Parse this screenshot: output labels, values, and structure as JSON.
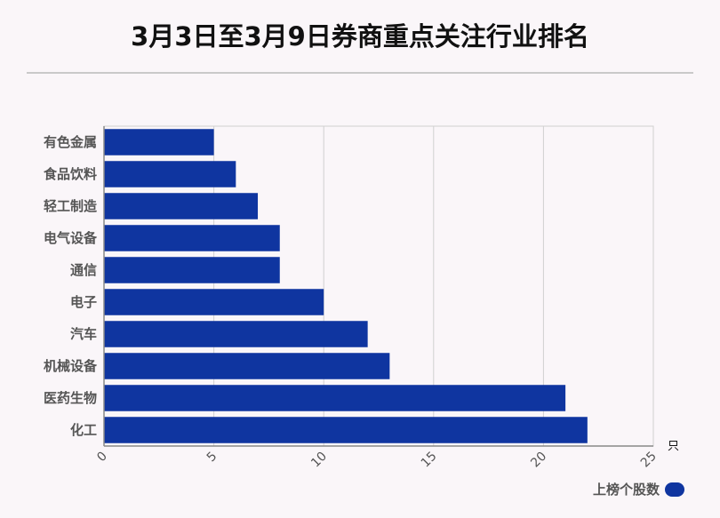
{
  "title": "3月3日至3月9日券商重点关注行业排名",
  "colors": {
    "bar": "#0f35a0",
    "grid": "#d0d0d0",
    "axis": "#888888"
  },
  "chart_data": {
    "type": "bar",
    "orientation": "horizontal",
    "title": "3月3日至3月9日券商重点关注行业排名",
    "categories": [
      "有色金属",
      "食品饮料",
      "轻工制造",
      "电气设备",
      "通信",
      "电子",
      "汽车",
      "机械设备",
      "医药生物",
      "化工"
    ],
    "series": [
      {
        "name": "上榜个股数",
        "values": [
          5,
          6,
          7,
          8,
          8,
          10,
          12,
          13,
          21,
          22
        ]
      }
    ],
    "xticks": [
      "0",
      "5",
      "10",
      "15",
      "20",
      "25"
    ],
    "xlim": [
      0,
      25
    ],
    "x_unit": "只",
    "grid": true,
    "legend": "bottom-right"
  }
}
